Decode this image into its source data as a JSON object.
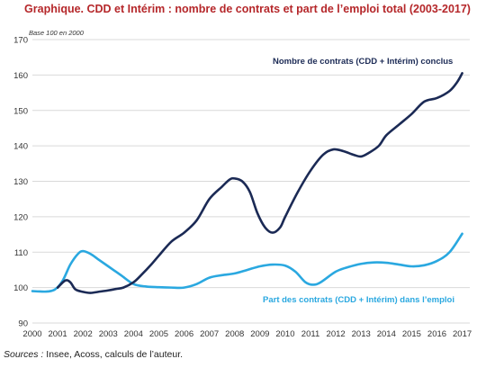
{
  "title": "Graphique. CDD et Intérim : nombre de contrats et part de l’emploi total (2003-2017)",
  "base_note": "Base 100 en 2000",
  "sources_label": "Sources :",
  "sources_text": " Insee, Acoss, calculs de l’auteur.",
  "colors": {
    "title": "#b5272a",
    "contracts": "#1b2a55",
    "share": "#2aa8e0",
    "grid": "#d9d9d9"
  },
  "chart_data": {
    "type": "line",
    "title": "Graphique. CDD et Intérim : nombre de contrats et part de l’emploi total (2003-2017)",
    "xlabel": "",
    "ylabel": "",
    "xlim": [
      2000,
      2017.3
    ],
    "ylim": [
      90,
      170
    ],
    "x_ticks": [
      "2000",
      "2001",
      "2002",
      "2003",
      "2004",
      "2005",
      "2006",
      "2007",
      "2008",
      "2009",
      "2010",
      "2011",
      "2012",
      "2013",
      "2014",
      "2015",
      "2016",
      "2017"
    ],
    "y_ticks": [
      "90",
      "100",
      "110",
      "120",
      "130",
      "140",
      "150",
      "160",
      "170"
    ],
    "grid": true,
    "series": [
      {
        "name": "Nombre de contrats (CDD + Intérim) conclus",
        "color": "#1b2a55",
        "points": [
          [
            2001.0,
            100.0
          ],
          [
            2001.3,
            102.0
          ],
          [
            2001.5,
            101.5
          ],
          [
            2001.7,
            99.5
          ],
          [
            2002.0,
            98.8
          ],
          [
            2002.3,
            98.5
          ],
          [
            2002.6,
            98.8
          ],
          [
            2003.0,
            99.2
          ],
          [
            2003.3,
            99.6
          ],
          [
            2003.6,
            100.0
          ],
          [
            2004.0,
            101.5
          ],
          [
            2004.3,
            103.5
          ],
          [
            2004.7,
            106.5
          ],
          [
            2005.0,
            109.0
          ],
          [
            2005.5,
            113.0
          ],
          [
            2006.0,
            115.5
          ],
          [
            2006.5,
            119.0
          ],
          [
            2007.0,
            125.0
          ],
          [
            2007.5,
            128.5
          ],
          [
            2007.8,
            130.5
          ],
          [
            2008.0,
            130.8
          ],
          [
            2008.3,
            130.0
          ],
          [
            2008.6,
            127.0
          ],
          [
            2008.9,
            121.0
          ],
          [
            2009.2,
            117.0
          ],
          [
            2009.5,
            115.5
          ],
          [
            2009.8,
            117.0
          ],
          [
            2010.0,
            120.0
          ],
          [
            2010.5,
            127.0
          ],
          [
            2011.0,
            133.0
          ],
          [
            2011.5,
            137.5
          ],
          [
            2011.9,
            139.0
          ],
          [
            2012.3,
            138.5
          ],
          [
            2012.7,
            137.5
          ],
          [
            2013.0,
            137.0
          ],
          [
            2013.3,
            138.0
          ],
          [
            2013.7,
            140.0
          ],
          [
            2014.0,
            143.0
          ],
          [
            2014.5,
            146.0
          ],
          [
            2015.0,
            149.0
          ],
          [
            2015.5,
            152.5
          ],
          [
            2016.0,
            153.5
          ],
          [
            2016.5,
            155.5
          ],
          [
            2016.8,
            158.0
          ],
          [
            2017.0,
            160.5
          ]
        ]
      },
      {
        "name": "Part des contrats (CDD + Intérim) dans l’emploi",
        "color": "#2aa8e0",
        "points": [
          [
            2000.0,
            99.0
          ],
          [
            2000.3,
            98.9
          ],
          [
            2000.6,
            98.9
          ],
          [
            2000.9,
            99.5
          ],
          [
            2001.2,
            102.0
          ],
          [
            2001.5,
            106.5
          ],
          [
            2001.8,
            109.5
          ],
          [
            2002.0,
            110.3
          ],
          [
            2002.3,
            109.5
          ],
          [
            2002.6,
            108.0
          ],
          [
            2003.0,
            106.0
          ],
          [
            2003.5,
            103.5
          ],
          [
            2004.0,
            101.0
          ],
          [
            2004.5,
            100.3
          ],
          [
            2005.0,
            100.1
          ],
          [
            2005.5,
            100.0
          ],
          [
            2006.0,
            100.0
          ],
          [
            2006.5,
            101.0
          ],
          [
            2007.0,
            102.8
          ],
          [
            2007.5,
            103.5
          ],
          [
            2008.0,
            104.0
          ],
          [
            2008.5,
            105.0
          ],
          [
            2009.0,
            106.0
          ],
          [
            2009.5,
            106.5
          ],
          [
            2010.0,
            106.2
          ],
          [
            2010.4,
            104.5
          ],
          [
            2010.8,
            101.5
          ],
          [
            2011.1,
            100.8
          ],
          [
            2011.4,
            101.5
          ],
          [
            2012.0,
            104.5
          ],
          [
            2012.5,
            105.8
          ],
          [
            2013.0,
            106.7
          ],
          [
            2013.5,
            107.1
          ],
          [
            2014.0,
            107.0
          ],
          [
            2014.5,
            106.5
          ],
          [
            2015.0,
            106.0
          ],
          [
            2015.5,
            106.3
          ],
          [
            2016.0,
            107.5
          ],
          [
            2016.5,
            110.0
          ],
          [
            2017.0,
            115.2
          ]
        ]
      }
    ]
  }
}
